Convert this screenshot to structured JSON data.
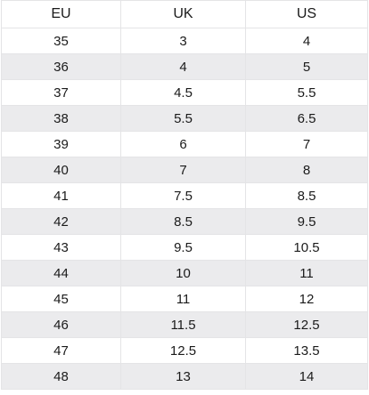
{
  "table": {
    "headers": [
      "EU",
      "UK",
      "US"
    ],
    "rows": [
      [
        "35",
        "3",
        "4"
      ],
      [
        "36",
        "4",
        "5"
      ],
      [
        "37",
        "4.5",
        "5.5"
      ],
      [
        "38",
        "5.5",
        "6.5"
      ],
      [
        "39",
        "6",
        "7"
      ],
      [
        "40",
        "7",
        "8"
      ],
      [
        "41",
        "7.5",
        "8.5"
      ],
      [
        "42",
        "8.5",
        "9.5"
      ],
      [
        "43",
        "9.5",
        "10.5"
      ],
      [
        "44",
        "10",
        "11"
      ],
      [
        "45",
        "11",
        "12"
      ],
      [
        "46",
        "11.5",
        "12.5"
      ],
      [
        "47",
        "12.5",
        "13.5"
      ],
      [
        "48",
        "13",
        "14"
      ]
    ]
  },
  "colors": {
    "stripe": "#ebebed",
    "border": "#e4e4e6",
    "text": "#1a1a1a"
  }
}
